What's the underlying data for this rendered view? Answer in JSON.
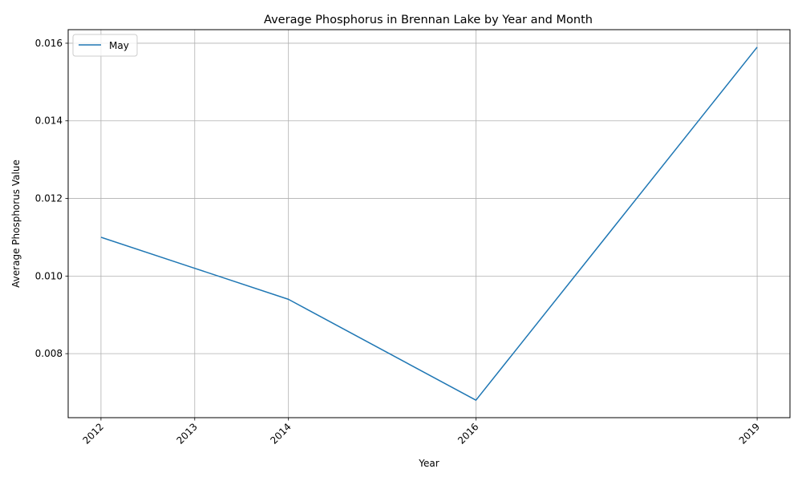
{
  "chart_data": {
    "type": "line",
    "title": "Average Phosphorus in Brennan Lake by Year and Month",
    "xlabel": "Year",
    "ylabel": "Average Phosphorus Value",
    "x": [
      2012,
      2013,
      2014,
      2016,
      2019
    ],
    "x_tick_labels": [
      "2012",
      "2013",
      "2014",
      "2016",
      "2019"
    ],
    "y_ticks": [
      0.008,
      0.01,
      0.012,
      0.014,
      0.016
    ],
    "y_tick_labels": [
      "0.008",
      "0.010",
      "0.012",
      "0.014",
      "0.016"
    ],
    "xlim": [
      2011.65,
      2019.35
    ],
    "ylim": [
      0.00635,
      0.01635
    ],
    "grid": true,
    "legend_position": "upper-left",
    "series": [
      {
        "name": "May",
        "color": "#1f77b4",
        "values": [
          0.011,
          0.0102,
          0.0094,
          0.0068,
          0.0159
        ]
      }
    ]
  }
}
